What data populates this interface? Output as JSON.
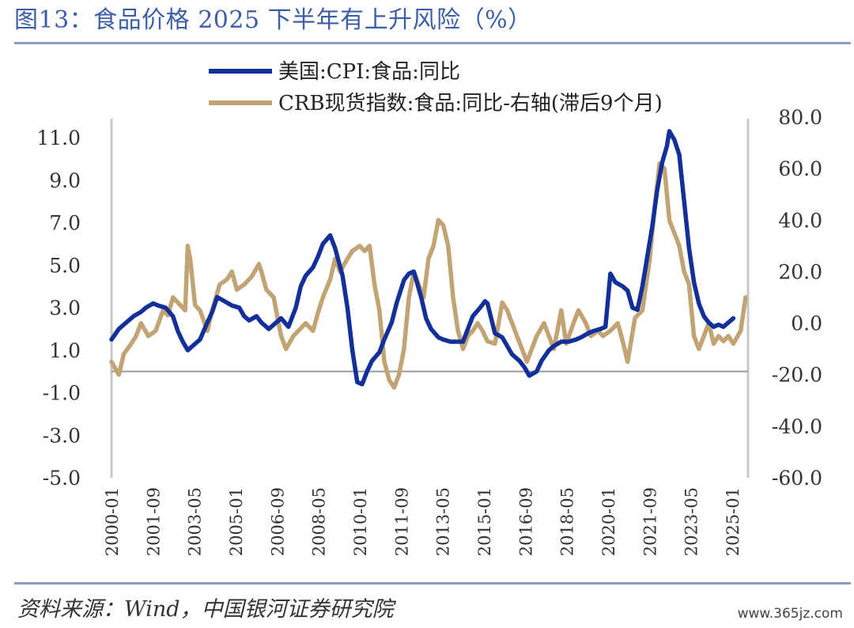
{
  "title": "图13：食品价格 2025 下半年有上升风险（%）",
  "source": "资料来源：Wind，中国银河证券研究院",
  "watermark": "www.365jz.com",
  "colors": {
    "cpi": "#13309a",
    "crb": "#c2a373",
    "axis": "#c8c8c8",
    "zero": "#9a9a9a"
  },
  "chart_data": {
    "type": "line",
    "y_left": {
      "ticks": [
        "11.0",
        "9.0",
        "7.0",
        "5.0",
        "3.0",
        "1.0",
        "-1.0",
        "-3.0",
        "-5.0"
      ],
      "range": [
        -5,
        12
      ]
    },
    "y_right": {
      "ticks": [
        "80.0",
        "60.0",
        "40.0",
        "20.0",
        "0.0",
        "-20.0",
        "-40.0",
        "-60.0"
      ],
      "range": [
        -60,
        80
      ]
    },
    "x_tick_labels": [
      "2000-01",
      "2001-09",
      "2003-05",
      "2005-01",
      "2006-09",
      "2008-05",
      "2010-01",
      "2011-09",
      "2013-05",
      "2015-01",
      "2016-09",
      "2018-05",
      "2020-01",
      "2021-09",
      "2023-05",
      "2025-01"
    ],
    "x_range": [
      2000.0,
      2025.9
    ],
    "series": [
      {
        "name": "美国:CPI:食品:同比",
        "axis": "left",
        "points": [
          [
            2000.0,
            1.5
          ],
          [
            2000.3,
            2.0
          ],
          [
            2000.6,
            2.3
          ],
          [
            2000.9,
            2.6
          ],
          [
            2001.2,
            2.8
          ],
          [
            2001.4,
            3.0
          ],
          [
            2001.7,
            3.2
          ],
          [
            2001.9,
            3.1
          ],
          [
            2002.2,
            3.0
          ],
          [
            2002.5,
            2.6
          ],
          [
            2002.7,
            1.9
          ],
          [
            2002.9,
            1.4
          ],
          [
            2003.1,
            1.0
          ],
          [
            2003.4,
            1.3
          ],
          [
            2003.6,
            1.5
          ],
          [
            2003.9,
            2.3
          ],
          [
            2004.1,
            2.8
          ],
          [
            2004.3,
            3.5
          ],
          [
            2004.6,
            3.3
          ],
          [
            2004.9,
            3.1
          ],
          [
            2005.2,
            3.0
          ],
          [
            2005.4,
            2.6
          ],
          [
            2005.6,
            2.4
          ],
          [
            2005.9,
            2.6
          ],
          [
            2006.1,
            2.3
          ],
          [
            2006.4,
            2.0
          ],
          [
            2006.7,
            2.3
          ],
          [
            2006.9,
            2.5
          ],
          [
            2007.2,
            2.1
          ],
          [
            2007.5,
            3.0
          ],
          [
            2007.7,
            4.0
          ],
          [
            2007.9,
            4.5
          ],
          [
            2008.2,
            4.9
          ],
          [
            2008.4,
            5.4
          ],
          [
            2008.6,
            6.0
          ],
          [
            2008.9,
            6.4
          ],
          [
            2009.1,
            5.8
          ],
          [
            2009.4,
            4.5
          ],
          [
            2009.6,
            3.0
          ],
          [
            2009.8,
            1.0
          ],
          [
            2010.0,
            -0.5
          ],
          [
            2010.2,
            -0.6
          ],
          [
            2010.4,
            0.0
          ],
          [
            2010.6,
            0.5
          ],
          [
            2010.9,
            0.9
          ],
          [
            2011.1,
            1.5
          ],
          [
            2011.4,
            2.3
          ],
          [
            2011.6,
            3.2
          ],
          [
            2011.9,
            4.3
          ],
          [
            2012.1,
            4.6
          ],
          [
            2012.3,
            4.7
          ],
          [
            2012.6,
            3.5
          ],
          [
            2012.8,
            2.5
          ],
          [
            2013.0,
            2.0
          ],
          [
            2013.3,
            1.6
          ],
          [
            2013.5,
            1.5
          ],
          [
            2013.8,
            1.4
          ],
          [
            2014.0,
            1.4
          ],
          [
            2014.3,
            1.4
          ],
          [
            2014.5,
            2.0
          ],
          [
            2014.7,
            2.6
          ],
          [
            2015.0,
            3.0
          ],
          [
            2015.2,
            3.3
          ],
          [
            2015.3,
            3.2
          ],
          [
            2015.6,
            1.8
          ],
          [
            2015.9,
            1.6
          ],
          [
            2016.1,
            1.2
          ],
          [
            2016.3,
            0.8
          ],
          [
            2016.6,
            0.5
          ],
          [
            2016.8,
            0.2
          ],
          [
            2017.0,
            -0.2
          ],
          [
            2017.3,
            0.0
          ],
          [
            2017.5,
            0.5
          ],
          [
            2017.8,
            1.0
          ],
          [
            2018.0,
            1.2
          ],
          [
            2018.3,
            1.4
          ],
          [
            2018.6,
            1.4
          ],
          [
            2018.9,
            1.5
          ],
          [
            2019.1,
            1.6
          ],
          [
            2019.4,
            1.8
          ],
          [
            2019.6,
            1.9
          ],
          [
            2019.9,
            2.0
          ],
          [
            2020.1,
            2.1
          ],
          [
            2020.3,
            4.6
          ],
          [
            2020.5,
            4.2
          ],
          [
            2020.8,
            4.0
          ],
          [
            2021.0,
            3.8
          ],
          [
            2021.2,
            3.0
          ],
          [
            2021.4,
            2.9
          ],
          [
            2021.6,
            4.0
          ],
          [
            2021.8,
            5.4
          ],
          [
            2022.0,
            6.8
          ],
          [
            2022.2,
            8.5
          ],
          [
            2022.4,
            9.8
          ],
          [
            2022.6,
            10.6
          ],
          [
            2022.7,
            11.3
          ],
          [
            2022.9,
            10.9
          ],
          [
            2023.1,
            10.2
          ],
          [
            2023.3,
            8.0
          ],
          [
            2023.5,
            5.8
          ],
          [
            2023.7,
            4.2
          ],
          [
            2023.9,
            3.2
          ],
          [
            2024.1,
            2.6
          ],
          [
            2024.3,
            2.3
          ],
          [
            2024.5,
            2.1
          ],
          [
            2024.7,
            2.2
          ],
          [
            2024.9,
            2.1
          ],
          [
            2025.1,
            2.3
          ],
          [
            2025.3,
            2.5
          ]
        ]
      },
      {
        "name": "CRB现货指数:食品:同比-右轴(滞后9个月)",
        "axis": "right",
        "points": [
          [
            2000.0,
            -15
          ],
          [
            2000.3,
            -20
          ],
          [
            2000.5,
            -12
          ],
          [
            2000.8,
            -8
          ],
          [
            2001.0,
            -5
          ],
          [
            2001.2,
            0
          ],
          [
            2001.5,
            -5
          ],
          [
            2001.8,
            -3
          ],
          [
            2002.1,
            5
          ],
          [
            2002.3,
            3
          ],
          [
            2002.5,
            10
          ],
          [
            2002.8,
            7
          ],
          [
            2003.0,
            5
          ],
          [
            2003.1,
            30
          ],
          [
            2003.2,
            25
          ],
          [
            2003.4,
            7
          ],
          [
            2003.6,
            5
          ],
          [
            2003.9,
            -3
          ],
          [
            2004.1,
            5
          ],
          [
            2004.4,
            15
          ],
          [
            2004.7,
            17
          ],
          [
            2004.9,
            20
          ],
          [
            2005.1,
            13
          ],
          [
            2005.4,
            15
          ],
          [
            2005.7,
            18
          ],
          [
            2006.0,
            23
          ],
          [
            2006.1,
            20
          ],
          [
            2006.3,
            13
          ],
          [
            2006.6,
            10
          ],
          [
            2006.9,
            -5
          ],
          [
            2007.1,
            -10
          ],
          [
            2007.4,
            -5
          ],
          [
            2007.7,
            -2
          ],
          [
            2007.9,
            0
          ],
          [
            2008.2,
            -3
          ],
          [
            2008.4,
            4
          ],
          [
            2008.6,
            10
          ],
          [
            2008.9,
            17
          ],
          [
            2009.1,
            25
          ],
          [
            2009.3,
            20
          ],
          [
            2009.6,
            25
          ],
          [
            2009.8,
            28
          ],
          [
            2010.1,
            30
          ],
          [
            2010.3,
            28
          ],
          [
            2010.5,
            30
          ],
          [
            2010.7,
            15
          ],
          [
            2010.9,
            5
          ],
          [
            2011.1,
            -15
          ],
          [
            2011.3,
            -22
          ],
          [
            2011.5,
            -25
          ],
          [
            2011.7,
            -20
          ],
          [
            2011.9,
            -10
          ],
          [
            2012.1,
            10
          ],
          [
            2012.3,
            20
          ],
          [
            2012.5,
            15
          ],
          [
            2012.7,
            10
          ],
          [
            2012.9,
            25
          ],
          [
            2013.1,
            30
          ],
          [
            2013.3,
            40
          ],
          [
            2013.5,
            38
          ],
          [
            2013.7,
            30
          ],
          [
            2013.9,
            10
          ],
          [
            2014.1,
            -3
          ],
          [
            2014.3,
            -10
          ],
          [
            2014.5,
            -5
          ],
          [
            2014.7,
            -3
          ],
          [
            2014.9,
            0
          ],
          [
            2015.1,
            -3
          ],
          [
            2015.3,
            -7
          ],
          [
            2015.6,
            -8
          ],
          [
            2015.9,
            8
          ],
          [
            2016.1,
            5
          ],
          [
            2016.3,
            0
          ],
          [
            2016.5,
            -5
          ],
          [
            2016.7,
            -10
          ],
          [
            2016.9,
            -15
          ],
          [
            2017.1,
            -10
          ],
          [
            2017.3,
            -5
          ],
          [
            2017.6,
            0
          ],
          [
            2017.8,
            -5
          ],
          [
            2018.0,
            -10
          ],
          [
            2018.3,
            5
          ],
          [
            2018.5,
            -8
          ],
          [
            2018.8,
            0
          ],
          [
            2019.0,
            5
          ],
          [
            2019.3,
            0
          ],
          [
            2019.5,
            -5
          ],
          [
            2019.8,
            -3
          ],
          [
            2020.0,
            -5
          ],
          [
            2020.3,
            -3
          ],
          [
            2020.6,
            0
          ],
          [
            2020.8,
            -7
          ],
          [
            2021.0,
            -15
          ],
          [
            2021.3,
            2
          ],
          [
            2021.6,
            5
          ],
          [
            2021.9,
            25
          ],
          [
            2022.1,
            45
          ],
          [
            2022.3,
            62
          ],
          [
            2022.5,
            60
          ],
          [
            2022.7,
            40
          ],
          [
            2022.9,
            35
          ],
          [
            2023.1,
            30
          ],
          [
            2023.3,
            20
          ],
          [
            2023.5,
            15
          ],
          [
            2023.7,
            -5
          ],
          [
            2023.9,
            -10
          ],
          [
            2024.1,
            -5
          ],
          [
            2024.3,
            0
          ],
          [
            2024.5,
            -8
          ],
          [
            2024.7,
            -5
          ],
          [
            2024.9,
            -7
          ],
          [
            2025.1,
            -5
          ],
          [
            2025.3,
            -8
          ],
          [
            2025.6,
            -3
          ],
          [
            2025.8,
            10
          ]
        ]
      }
    ],
    "legend_position": "top-center"
  }
}
